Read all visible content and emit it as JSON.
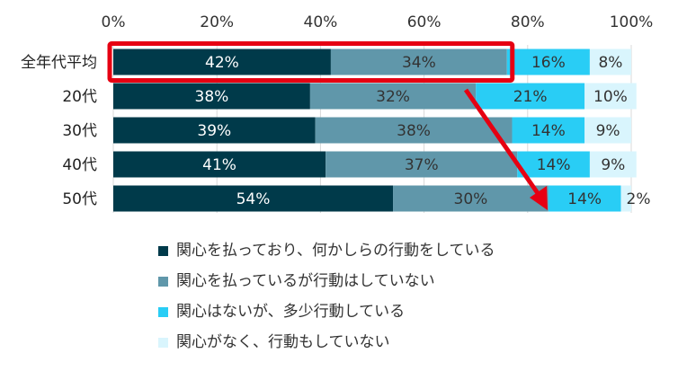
{
  "chart_data": {
    "type": "bar",
    "orientation": "horizontal",
    "stacked": true,
    "xlim": [
      0,
      100
    ],
    "x_ticks": [
      "0%",
      "20%",
      "40%",
      "60%",
      "80%",
      "100%"
    ],
    "categories": [
      "全年代平均",
      "20代",
      "30代",
      "40代",
      "50代"
    ],
    "series": [
      {
        "name": "関心を払っており、何かしらの行動をしている",
        "color": "#003a4a",
        "label_color": "#ffffff",
        "values": [
          42,
          38,
          39,
          41,
          54
        ]
      },
      {
        "name": "関心を払っているが行動はしていない",
        "color": "#6097aa",
        "label_color": "#333333",
        "values": [
          34,
          32,
          38,
          37,
          30
        ]
      },
      {
        "name": "関心はないが、多少行動している",
        "color": "#29cdf5",
        "label_color": "#333333",
        "values": [
          16,
          21,
          14,
          14,
          14
        ]
      },
      {
        "name": "関心がなく、行動もしていない",
        "color": "#d9f5fd",
        "label_color": "#333333",
        "values": [
          8,
          10,
          9,
          9,
          2
        ]
      }
    ],
    "data_labels": [
      [
        "42%",
        "38%",
        "39%",
        "41%",
        "54%"
      ],
      [
        "34%",
        "32%",
        "38%",
        "37%",
        "30%"
      ],
      [
        "16%",
        "21%",
        "14%",
        "14%",
        "14%"
      ],
      [
        "8%",
        "10%",
        "9%",
        "9%",
        "2%"
      ]
    ],
    "grid": true,
    "legend_position": "bottom",
    "annotations": {
      "highlight_color": "#e60012",
      "highlight_category": "全年代平均",
      "arrow_color": "#e60012"
    }
  }
}
